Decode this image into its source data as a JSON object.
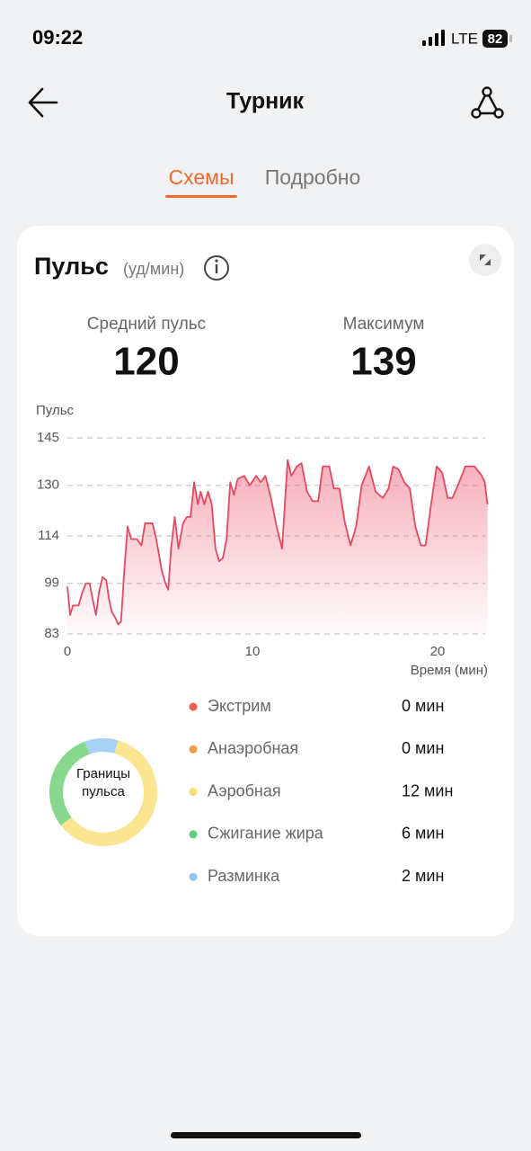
{
  "status_bar": {
    "time": "09:22",
    "network": "LTE",
    "battery": 82
  },
  "header": {
    "title": "Турник"
  },
  "tabs": [
    "Схемы",
    "Подробно"
  ],
  "card": {
    "title": "Пульс",
    "unit": "(уд/мин)",
    "stats": [
      {
        "label": "Средний пульс",
        "value": 120
      },
      {
        "label": "Максимум",
        "value": 139
      }
    ]
  },
  "chart_data": [
    {
      "type": "line",
      "y_label": "Пульс",
      "x_label": "Время (мин)",
      "x": [
        0,
        0.15,
        0.3,
        0.6,
        0.8,
        1.0,
        1.2,
        1.4,
        1.55,
        1.7,
        1.9,
        2.1,
        2.25,
        2.4,
        2.6,
        2.75,
        2.9,
        3.05,
        3.25,
        3.45,
        3.75,
        4.0,
        4.2,
        4.6,
        4.8,
        5.1,
        5.3,
        5.45,
        5.6,
        5.8,
        6.0,
        6.25,
        6.45,
        6.65,
        6.85,
        7.05,
        7.2,
        7.4,
        7.6,
        7.8,
        8.0,
        8.2,
        8.4,
        8.6,
        8.8,
        9.0,
        9.2,
        9.55,
        9.85,
        10.2,
        10.45,
        10.7,
        11.0,
        11.3,
        11.6,
        11.9,
        12.1,
        12.4,
        12.65,
        12.95,
        13.25,
        13.55,
        13.8,
        14.15,
        14.4,
        14.7,
        15.0,
        15.3,
        15.6,
        15.9,
        16.3,
        16.65,
        17.05,
        17.35,
        17.6,
        17.9,
        18.2,
        18.5,
        18.8,
        19.1,
        19.35,
        19.65,
        19.95,
        20.25,
        20.55,
        20.8,
        21.1,
        21.5,
        22.0,
        22.4,
        22.55,
        22.7
      ],
      "series": [
        {
          "color": "#e8485f",
          "values": [
            98,
            89,
            92,
            92,
            96,
            99,
            99,
            93,
            89,
            96,
            101,
            100,
            94,
            90,
            88,
            86,
            87,
            101,
            117,
            113,
            113,
            111,
            118,
            118,
            113,
            103,
            99,
            97,
            110,
            120,
            110,
            118,
            120,
            120,
            131,
            124,
            128,
            124,
            128,
            124,
            110,
            106,
            107,
            113,
            131,
            127,
            132,
            133,
            130,
            133,
            131,
            133,
            126,
            117,
            110,
            138,
            133,
            136,
            137,
            128,
            125,
            125,
            136,
            136,
            129,
            129,
            118,
            111,
            117,
            130,
            136,
            128,
            126,
            129,
            136,
            135,
            131,
            129,
            117,
            111,
            111,
            124,
            136,
            134,
            126,
            126,
            130,
            136,
            136,
            133,
            131,
            124
          ]
        }
      ],
      "xlim": [
        0,
        22.7
      ],
      "ylim": [
        83,
        145
      ],
      "xticks": [
        0,
        10,
        20
      ],
      "yticks": [
        145,
        130,
        114,
        99,
        83
      ],
      "grid": true
    },
    {
      "type": "donut",
      "title": "Границы пульса",
      "categories": [
        "Экстрим",
        "Анаэробная",
        "Аэробная",
        "Сжигание жира",
        "Разминка"
      ],
      "values": [
        0,
        0,
        12,
        6,
        2
      ],
      "value_labels": [
        "0 мин",
        "0 мин",
        "12 мин",
        "6 мин",
        "2 мин"
      ],
      "colors": [
        "#f25a4c",
        "#f09a4c",
        "#f8dc76",
        "#62cf7c",
        "#90c2f5"
      ]
    }
  ]
}
